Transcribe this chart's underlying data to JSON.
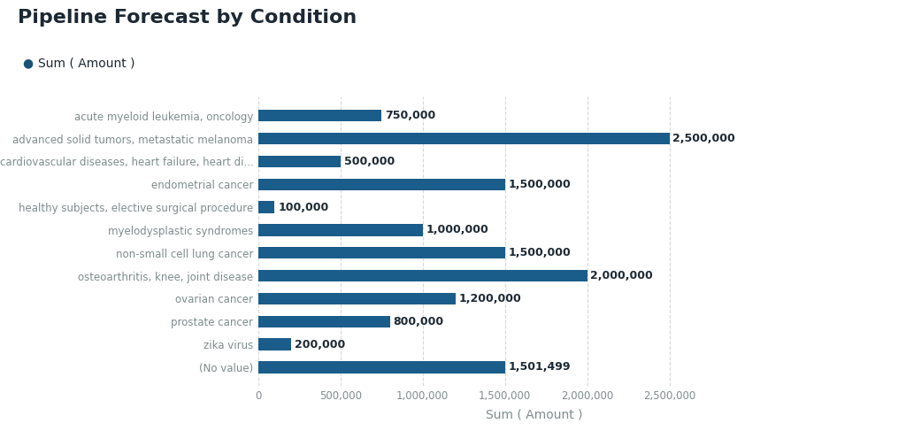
{
  "title": "Pipeline Forecast by Condition",
  "legend_label": "Sum ( Amount )",
  "legend_color": "#1a5276",
  "xlabel": "Sum ( Amount )",
  "categories": [
    "acute myeloid leukemia, oncology",
    "advanced solid tumors, metastatic melanoma",
    "cardiovascular diseases, heart failure, heart di...",
    "endometrial cancer",
    "healthy subjects, elective surgical procedure",
    "myelodysplastic syndromes",
    "non-small cell lung cancer",
    "osteoarthritis, knee, joint disease",
    "ovarian cancer",
    "prostate cancer",
    "zika virus",
    "(No value)"
  ],
  "values": [
    750000,
    2500000,
    500000,
    1500000,
    100000,
    1000000,
    1500000,
    2000000,
    1200000,
    800000,
    200000,
    1501499
  ],
  "bar_color": "#1a5c8a",
  "background_color": "#ffffff",
  "plot_bg_color": "#ffffff",
  "title_color": "#1c2833",
  "label_color": "#1c2833",
  "axis_label_color": "#7f8c8d",
  "tick_color": "#7f8c8d",
  "grid_color": "#d5d8dc",
  "xlim_max": 3360000,
  "xtick_values": [
    0,
    500000,
    1000000,
    1500000,
    2000000,
    2500000
  ],
  "xtick_labels": [
    "0",
    "500,000",
    "1,000,000",
    "1,500,000",
    "2,000,000",
    "2,500,000"
  ],
  "title_fontsize": 16,
  "legend_fontsize": 10,
  "ylabel_fontsize": 10,
  "xlabel_fontsize": 10,
  "tick_fontsize": 8.5,
  "value_label_fontsize": 9,
  "bar_height": 0.52
}
